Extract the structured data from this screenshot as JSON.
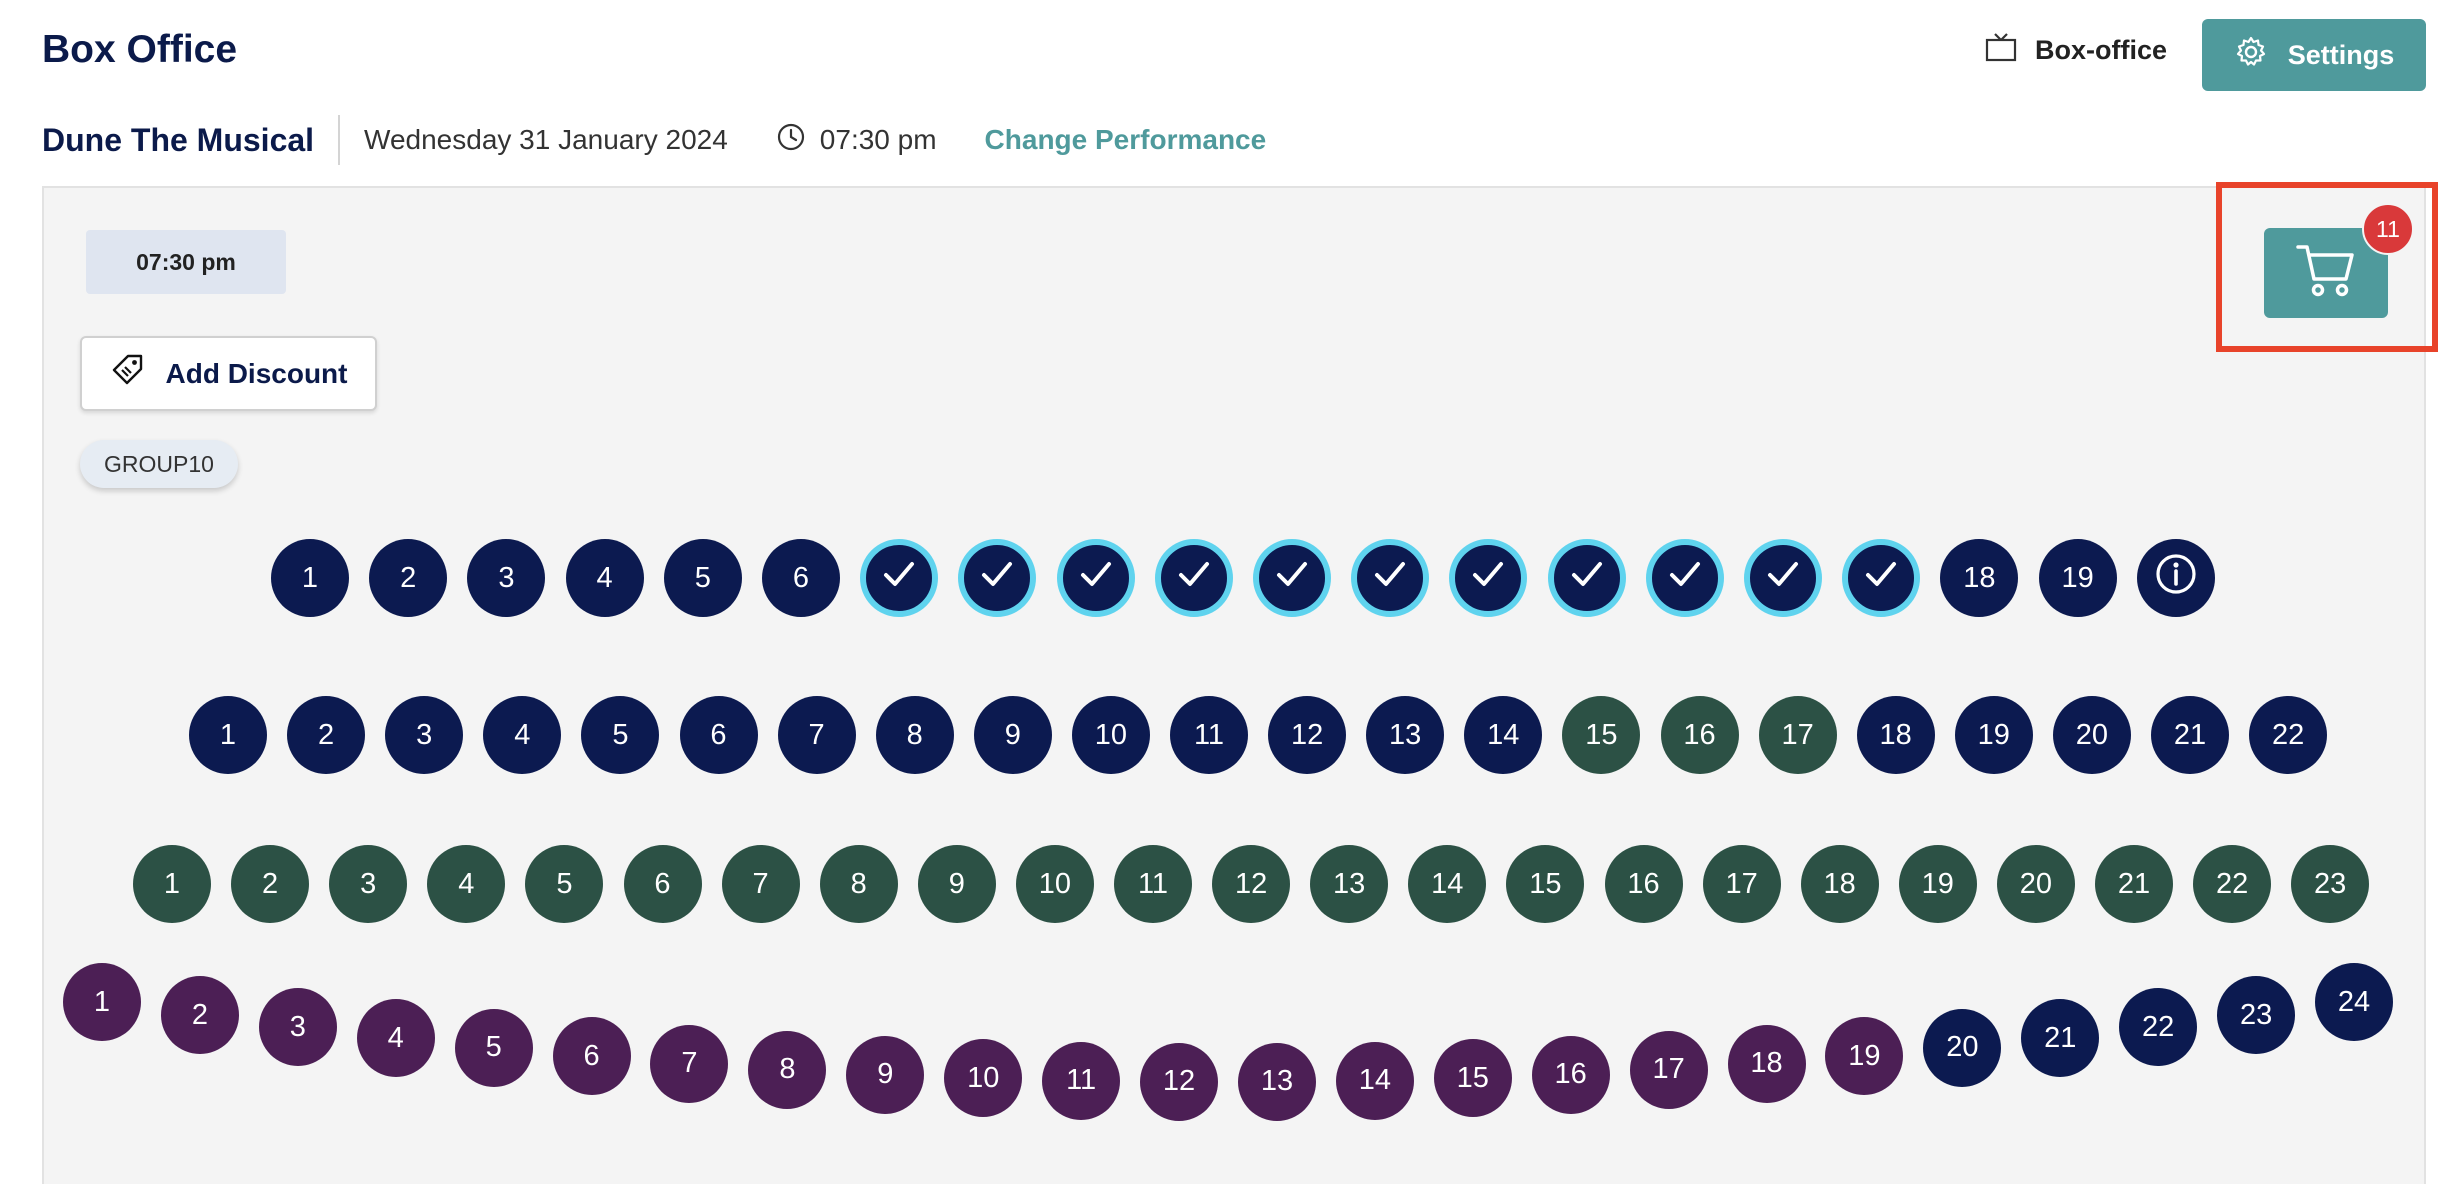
{
  "header": {
    "title": "Box Office",
    "boxoffice_label": "Box-office",
    "settings_label": "Settings"
  },
  "performance": {
    "show": "Dune The Musical",
    "date": "Wednesday 31 January 2024",
    "time": "07:30 pm",
    "change_label": "Change Performance"
  },
  "panel": {
    "time_chip": "07:30 pm",
    "add_discount_label": "Add Discount",
    "discount_code": "GROUP10"
  },
  "cart": {
    "count": "11"
  },
  "colors": {
    "accent": "#4f9a9c",
    "seat_available": "#0c1a50",
    "seat_zone_green": "#2c5145",
    "seat_zone_purple": "#4c1f55",
    "seat_selected_ring": "#5fd3ee",
    "badge": "#d9393a",
    "highlight": "#e8432a"
  },
  "rows": [
    {
      "seats": [
        {
          "label": "1",
          "state": "available"
        },
        {
          "label": "2",
          "state": "available"
        },
        {
          "label": "3",
          "state": "available"
        },
        {
          "label": "4",
          "state": "available"
        },
        {
          "label": "5",
          "state": "available"
        },
        {
          "label": "6",
          "state": "available"
        },
        {
          "label": "",
          "state": "selected"
        },
        {
          "label": "",
          "state": "selected"
        },
        {
          "label": "",
          "state": "selected"
        },
        {
          "label": "",
          "state": "selected"
        },
        {
          "label": "",
          "state": "selected"
        },
        {
          "label": "",
          "state": "selected"
        },
        {
          "label": "",
          "state": "selected"
        },
        {
          "label": "",
          "state": "selected"
        },
        {
          "label": "",
          "state": "selected"
        },
        {
          "label": "",
          "state": "selected"
        },
        {
          "label": "",
          "state": "selected"
        },
        {
          "label": "18",
          "state": "available"
        },
        {
          "label": "19",
          "state": "available"
        },
        {
          "label": "",
          "state": "info"
        }
      ]
    },
    {
      "seats": [
        {
          "label": "1",
          "state": "available"
        },
        {
          "label": "2",
          "state": "available"
        },
        {
          "label": "3",
          "state": "available"
        },
        {
          "label": "4",
          "state": "available"
        },
        {
          "label": "5",
          "state": "available"
        },
        {
          "label": "6",
          "state": "available"
        },
        {
          "label": "7",
          "state": "available"
        },
        {
          "label": "8",
          "state": "available"
        },
        {
          "label": "9",
          "state": "available"
        },
        {
          "label": "10",
          "state": "available"
        },
        {
          "label": "11",
          "state": "available"
        },
        {
          "label": "12",
          "state": "available"
        },
        {
          "label": "13",
          "state": "available"
        },
        {
          "label": "14",
          "state": "available"
        },
        {
          "label": "15",
          "state": "green"
        },
        {
          "label": "16",
          "state": "green"
        },
        {
          "label": "17",
          "state": "green"
        },
        {
          "label": "18",
          "state": "available"
        },
        {
          "label": "19",
          "state": "available"
        },
        {
          "label": "20",
          "state": "available"
        },
        {
          "label": "21",
          "state": "available"
        },
        {
          "label": "22",
          "state": "available"
        }
      ]
    },
    {
      "seats": [
        {
          "label": "1",
          "state": "green"
        },
        {
          "label": "2",
          "state": "green"
        },
        {
          "label": "3",
          "state": "green"
        },
        {
          "label": "4",
          "state": "green"
        },
        {
          "label": "5",
          "state": "green"
        },
        {
          "label": "6",
          "state": "green"
        },
        {
          "label": "7",
          "state": "green"
        },
        {
          "label": "8",
          "state": "green"
        },
        {
          "label": "9",
          "state": "green"
        },
        {
          "label": "10",
          "state": "green"
        },
        {
          "label": "11",
          "state": "green"
        },
        {
          "label": "12",
          "state": "green"
        },
        {
          "label": "13",
          "state": "green"
        },
        {
          "label": "14",
          "state": "green"
        },
        {
          "label": "15",
          "state": "green"
        },
        {
          "label": "16",
          "state": "green"
        },
        {
          "label": "17",
          "state": "green"
        },
        {
          "label": "18",
          "state": "green"
        },
        {
          "label": "19",
          "state": "green"
        },
        {
          "label": "20",
          "state": "green"
        },
        {
          "label": "21",
          "state": "green"
        },
        {
          "label": "22",
          "state": "green"
        },
        {
          "label": "23",
          "state": "green"
        }
      ]
    },
    {
      "seats": [
        {
          "label": "1",
          "state": "purple"
        },
        {
          "label": "2",
          "state": "purple"
        },
        {
          "label": "3",
          "state": "purple"
        },
        {
          "label": "4",
          "state": "purple"
        },
        {
          "label": "5",
          "state": "purple"
        },
        {
          "label": "6",
          "state": "purple"
        },
        {
          "label": "7",
          "state": "purple"
        },
        {
          "label": "8",
          "state": "purple"
        },
        {
          "label": "9",
          "state": "purple"
        },
        {
          "label": "10",
          "state": "purple"
        },
        {
          "label": "11",
          "state": "purple"
        },
        {
          "label": "12",
          "state": "purple"
        },
        {
          "label": "13",
          "state": "purple"
        },
        {
          "label": "14",
          "state": "purple"
        },
        {
          "label": "15",
          "state": "purple"
        },
        {
          "label": "16",
          "state": "purple"
        },
        {
          "label": "17",
          "state": "purple"
        },
        {
          "label": "18",
          "state": "purple"
        },
        {
          "label": "19",
          "state": "purple"
        },
        {
          "label": "20",
          "state": "available"
        },
        {
          "label": "21",
          "state": "available"
        },
        {
          "label": "22",
          "state": "available"
        },
        {
          "label": "23",
          "state": "available"
        },
        {
          "label": "24",
          "state": "available"
        }
      ]
    }
  ]
}
